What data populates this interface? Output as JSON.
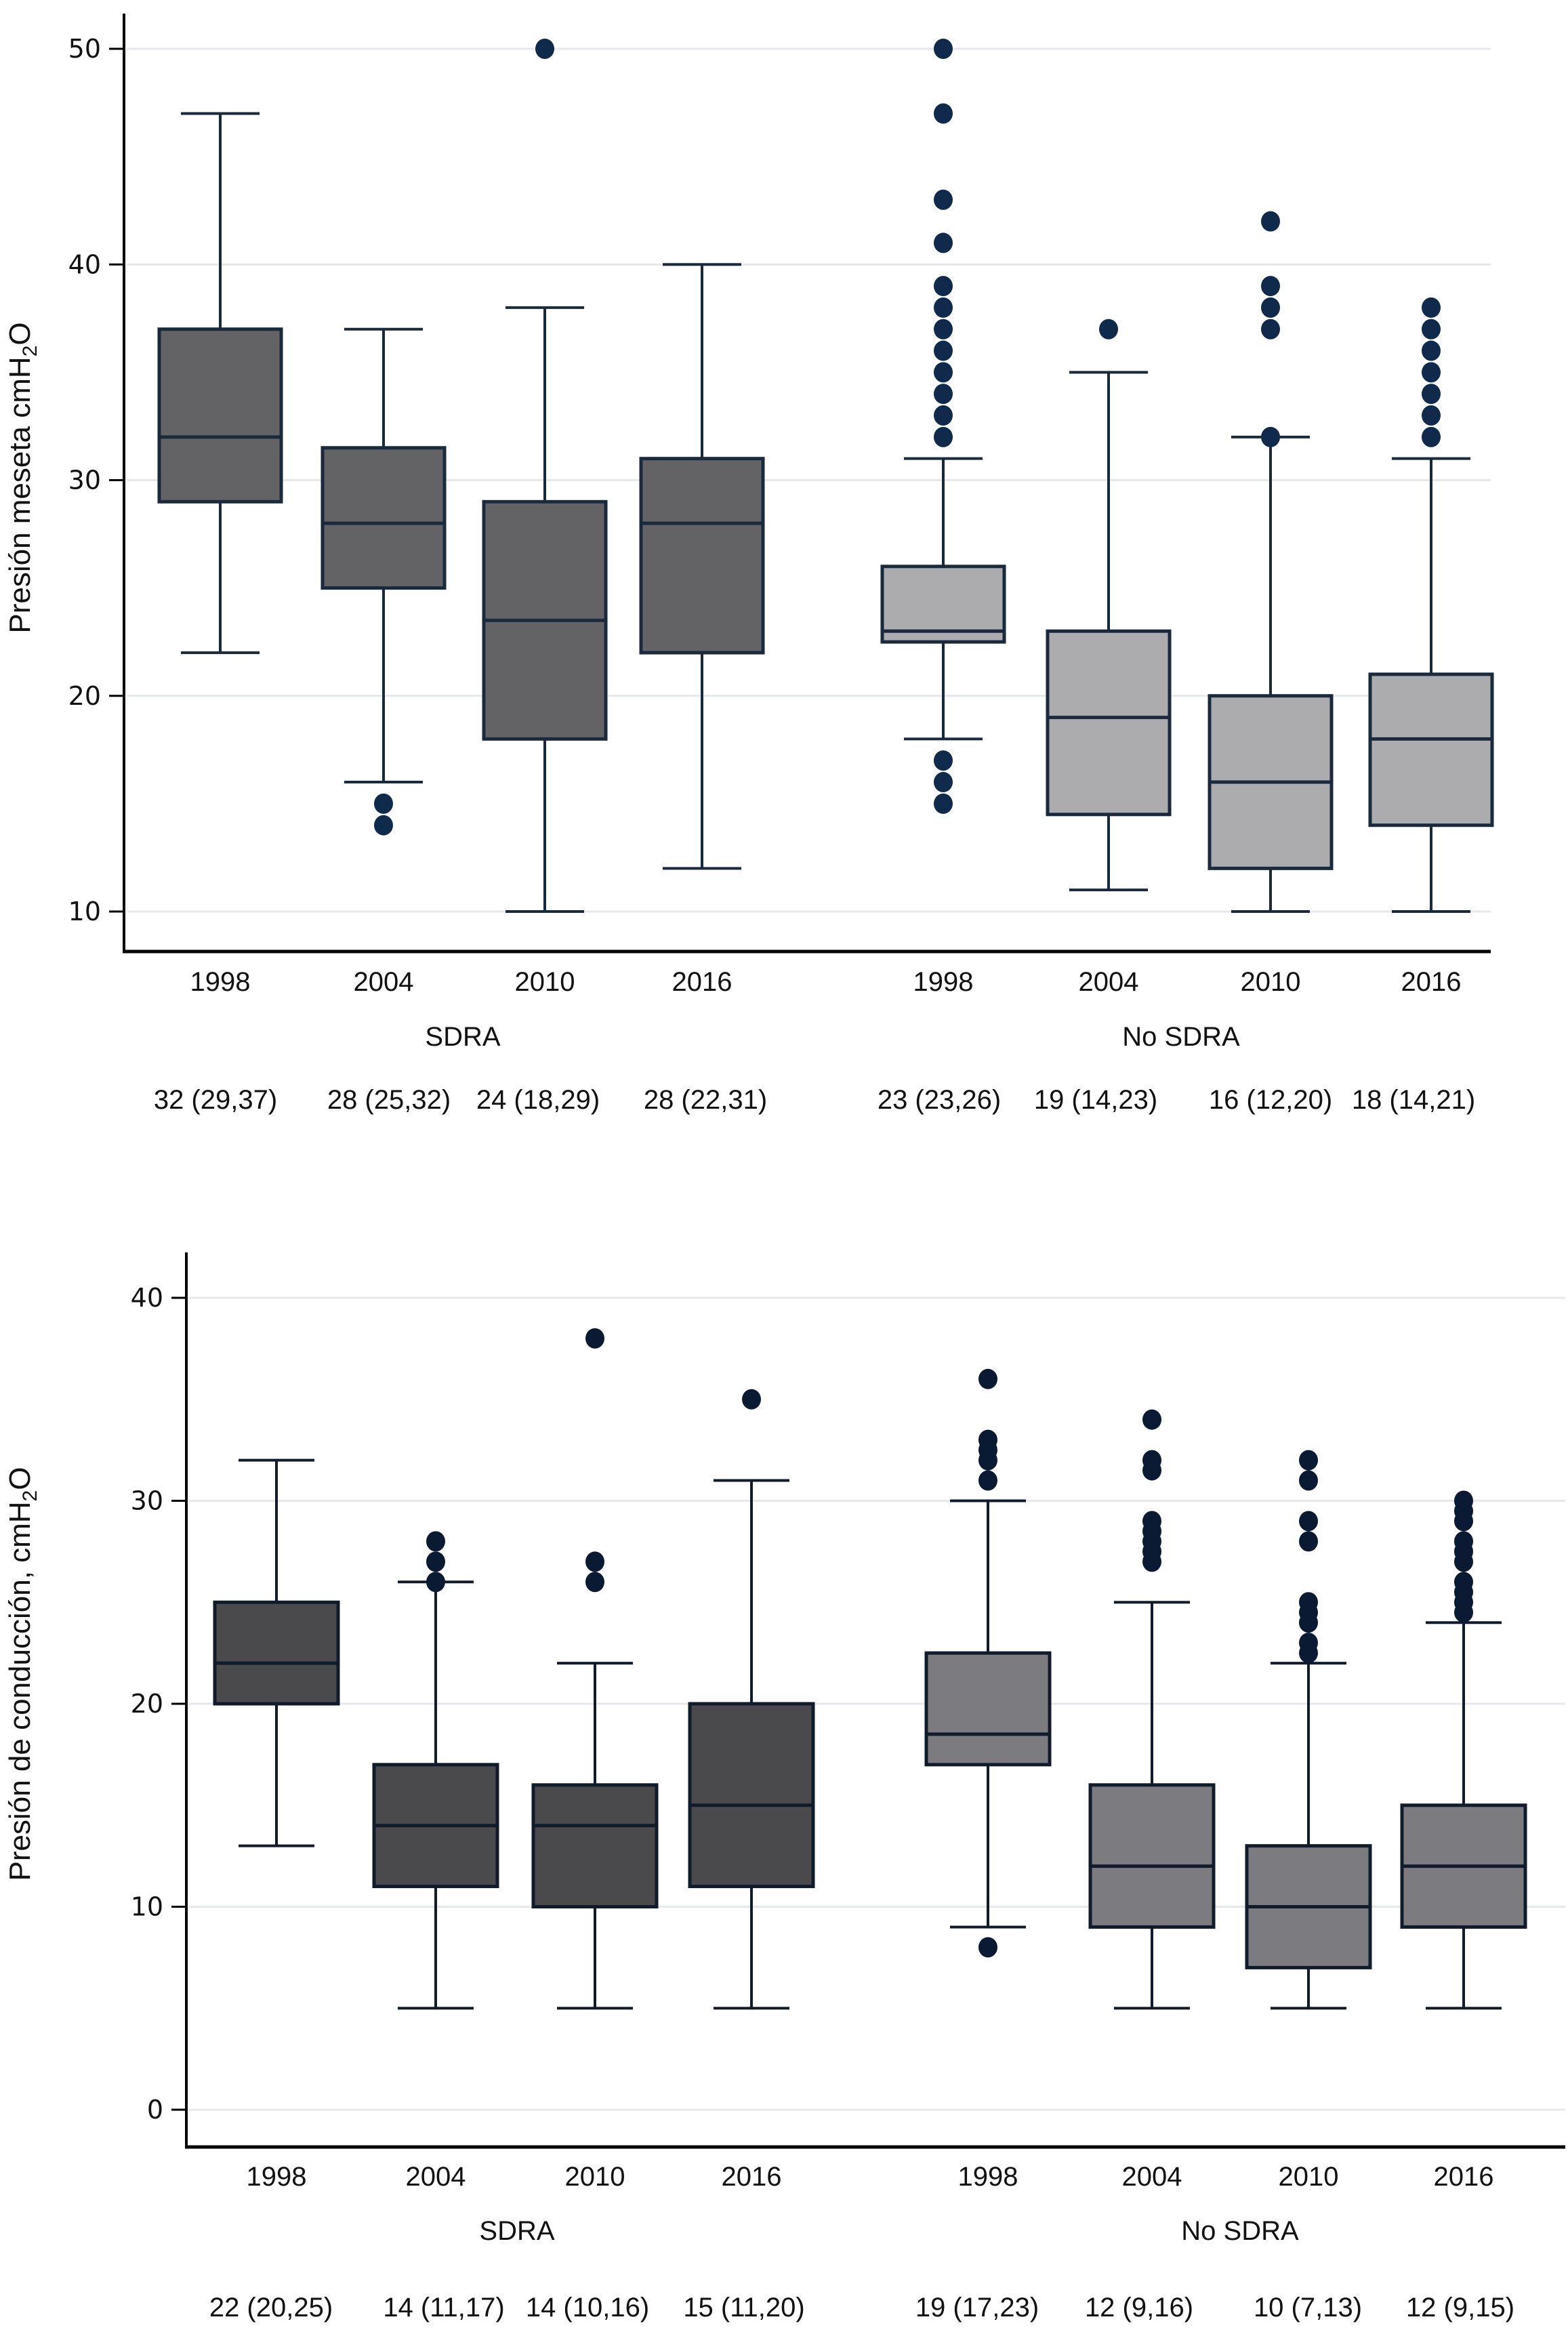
{
  "chart_data": [
    {
      "type": "box",
      "ylabel": "Presión meseta cmH2O",
      "ylabel_parts": {
        "main": "Presión meseta cmH",
        "sub": "2",
        "tail": "O"
      },
      "ylim": [
        10,
        50
      ],
      "yticks": [
        10,
        20,
        30,
        40,
        50
      ],
      "grid": true,
      "groups": [
        "SDRA",
        "No SDRA"
      ],
      "categories": [
        "1998",
        "2004",
        "2010",
        "2016",
        "1998",
        "2004",
        "2010",
        "2016"
      ],
      "summary_labels": [
        "32 (29,37)",
        "28 (25,32)",
        "24 (18,29)",
        "28 (22,31)",
        "23 (23,26)",
        "19 (14,23)",
        "16 (12,20)",
        "18 (14,21)"
      ],
      "colors": {
        "SDRA": "#636366",
        "No SDRA": "#acacae",
        "outline": "#1a2a3e",
        "outlier": "#0f2a4a"
      },
      "series": [
        {
          "group": "SDRA",
          "year": "1998",
          "whisker_low": 22,
          "q1": 29,
          "median": 32,
          "q3": 37,
          "whisker_high": 47,
          "outliers": []
        },
        {
          "group": "SDRA",
          "year": "2004",
          "whisker_low": 16,
          "q1": 25,
          "median": 28,
          "q3": 31.5,
          "whisker_high": 37,
          "outliers": [
            15,
            14
          ]
        },
        {
          "group": "SDRA",
          "year": "2010",
          "whisker_low": 10,
          "q1": 18,
          "median": 23.5,
          "q3": 29,
          "whisker_high": 38,
          "outliers": [
            50
          ]
        },
        {
          "group": "SDRA",
          "year": "2016",
          "whisker_low": 12,
          "q1": 22,
          "median": 28,
          "q3": 31,
          "whisker_high": 40,
          "outliers": []
        },
        {
          "group": "No SDRA",
          "year": "1998",
          "whisker_low": 18,
          "q1": 22.5,
          "median": 23,
          "q3": 26,
          "whisker_high": 31,
          "outliers": [
            50,
            47,
            43,
            41,
            39,
            38,
            37,
            36,
            35,
            34,
            33,
            32,
            17,
            16,
            15
          ]
        },
        {
          "group": "No SDRA",
          "year": "2004",
          "whisker_low": 11,
          "q1": 14.5,
          "median": 19,
          "q3": 23,
          "whisker_high": 35,
          "outliers": [
            37
          ]
        },
        {
          "group": "No SDRA",
          "year": "2010",
          "whisker_low": 10,
          "q1": 12,
          "median": 16,
          "q3": 20,
          "whisker_high": 32,
          "outliers": [
            42,
            39,
            38,
            37,
            32
          ]
        },
        {
          "group": "No SDRA",
          "year": "2016",
          "whisker_low": 10,
          "q1": 14,
          "median": 18,
          "q3": 21,
          "whisker_high": 31,
          "outliers": [
            38,
            37,
            36,
            35,
            34,
            33,
            32
          ]
        }
      ]
    },
    {
      "type": "box",
      "ylabel": "Presión de conducción, cmH2O",
      "ylabel_parts": {
        "main": "Presión de conducción, cmH",
        "sub": "2",
        "tail": "O"
      },
      "ylim": [
        0,
        40
      ],
      "yticks": [
        0,
        10,
        20,
        30,
        40
      ],
      "grid": true,
      "groups": [
        "SDRA",
        "No SDRA"
      ],
      "categories": [
        "1998",
        "2004",
        "2010",
        "2016",
        "1998",
        "2004",
        "2010",
        "2016"
      ],
      "summary_labels": [
        "22 (20,25)",
        "14 (11,17)",
        "14 (10,16)",
        "15 (11,20)",
        "19 (17,23)",
        "12 (9,16)",
        "10 (7,13)",
        "12 (9,15)"
      ],
      "colors": {
        "SDRA": "#4a4a4c",
        "No SDRA": "#7c7c80",
        "outline": "#101c2c",
        "outlier": "#0b1a33"
      },
      "series": [
        {
          "group": "SDRA",
          "year": "1998",
          "whisker_low": 13,
          "q1": 20,
          "median": 22,
          "q3": 25,
          "whisker_high": 32,
          "outliers": []
        },
        {
          "group": "SDRA",
          "year": "2004",
          "whisker_low": 5,
          "q1": 11,
          "median": 14,
          "q3": 17,
          "whisker_high": 26,
          "outliers": [
            28,
            27,
            26
          ]
        },
        {
          "group": "SDRA",
          "year": "2010",
          "whisker_low": 5,
          "q1": 10,
          "median": 14,
          "q3": 16,
          "whisker_high": 22,
          "outliers": [
            38,
            27,
            26
          ]
        },
        {
          "group": "SDRA",
          "year": "2016",
          "whisker_low": 5,
          "q1": 11,
          "median": 15,
          "q3": 20,
          "whisker_high": 31,
          "outliers": [
            35
          ]
        },
        {
          "group": "No SDRA",
          "year": "1998",
          "whisker_low": 9,
          "q1": 17,
          "median": 18.5,
          "q3": 22.5,
          "whisker_high": 30,
          "outliers": [
            36,
            33,
            32.5,
            32,
            31,
            8
          ]
        },
        {
          "group": "No SDRA",
          "year": "2004",
          "whisker_low": 5,
          "q1": 9,
          "median": 12,
          "q3": 16,
          "whisker_high": 25,
          "outliers": [
            34,
            32,
            31.5,
            29,
            28.5,
            28,
            27.5,
            27
          ]
        },
        {
          "group": "No SDRA",
          "year": "2010",
          "whisker_low": 5,
          "q1": 7,
          "median": 10,
          "q3": 13,
          "whisker_high": 22,
          "outliers": [
            32,
            31,
            29,
            28,
            25,
            24.5,
            24,
            23,
            22.5
          ]
        },
        {
          "group": "No SDRA",
          "year": "2016",
          "whisker_low": 5,
          "q1": 9,
          "median": 12,
          "q3": 15,
          "whisker_high": 24,
          "outliers": [
            30,
            29.5,
            29,
            28,
            27.5,
            27,
            26,
            25.5,
            25,
            24.5
          ]
        }
      ]
    }
  ]
}
